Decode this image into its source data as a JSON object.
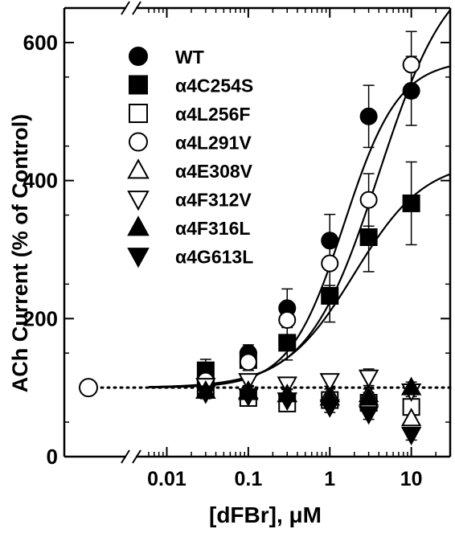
{
  "chart_data": {
    "type": "scatter",
    "title": "",
    "xlabel": "[dFBr], μM",
    "ylabel": "ACh Current (% of Control)",
    "x_scale": "log",
    "x_axis_break": true,
    "xlim": [
      0.003,
      30
    ],
    "ylim": [
      0,
      650
    ],
    "x_ticks": [
      0.01,
      0.1,
      1,
      10
    ],
    "x_tick_labels": [
      "0.01",
      "0.1",
      "1",
      "10"
    ],
    "y_ticks": [
      0,
      200,
      400,
      600
    ],
    "y_tick_labels": [
      "0",
      "200",
      "400",
      "600"
    ],
    "control_point": {
      "y": 100,
      "marker": "circle-open"
    },
    "reference_line": {
      "y": 100,
      "style": "dotted"
    },
    "legend_position": "top-left",
    "series": [
      {
        "name": "WT",
        "marker": "circle-filled",
        "x": [
          0.03,
          0.1,
          0.3,
          1,
          3,
          10
        ],
        "y": [
          110,
          150,
          215,
          313,
          493,
          530
        ],
        "err": [
          10,
          12,
          28,
          38,
          45,
          50
        ]
      },
      {
        "name": "α4C254S",
        "marker": "square-filled",
        "x": [
          0.03,
          0.1,
          0.3,
          1,
          3,
          10
        ],
        "y": [
          125,
          140,
          165,
          233,
          318,
          367
        ],
        "err": [
          16,
          15,
          25,
          38,
          50,
          60
        ]
      },
      {
        "name": "α4L256F",
        "marker": "square-open",
        "x": [
          0.03,
          0.1,
          0.3,
          1,
          3,
          10
        ],
        "y": [
          100,
          85,
          77,
          82,
          78,
          72
        ],
        "err": [
          8,
          8,
          8,
          8,
          8,
          10
        ]
      },
      {
        "name": "α4L291V",
        "marker": "circle-open",
        "x": [
          0.03,
          0.1,
          0.3,
          1,
          3,
          10
        ],
        "y": [
          110,
          137,
          198,
          280,
          372,
          568
        ],
        "err": [
          10,
          12,
          22,
          32,
          38,
          48
        ]
      },
      {
        "name": "α4E308V",
        "marker": "triangle-up-open",
        "x": [
          0.03,
          0.1,
          0.3,
          1,
          3,
          10
        ],
        "y": [
          95,
          93,
          90,
          90,
          90,
          55
        ],
        "err": [
          8,
          8,
          8,
          8,
          8,
          8
        ]
      },
      {
        "name": "α4F312V",
        "marker": "triangle-down-open",
        "x": [
          0.03,
          0.1,
          0.3,
          1,
          3,
          10
        ],
        "y": [
          103,
          110,
          105,
          110,
          115,
          95
        ],
        "err": [
          8,
          8,
          8,
          8,
          12,
          8
        ]
      },
      {
        "name": "α4F316L",
        "marker": "triangle-up-filled",
        "x": [
          0.03,
          0.1,
          0.3,
          1,
          3,
          10
        ],
        "y": [
          95,
          95,
          90,
          85,
          85,
          100
        ],
        "err": [
          8,
          8,
          8,
          8,
          8,
          8
        ]
      },
      {
        "name": "α4G613L",
        "marker": "triangle-down-filled",
        "x": [
          0.03,
          0.1,
          0.3,
          1,
          3,
          10
        ],
        "y": [
          92,
          88,
          82,
          72,
          62,
          32
        ],
        "err": [
          8,
          8,
          8,
          8,
          8,
          8
        ]
      }
    ],
    "fit_curves": [
      {
        "series": "WT",
        "bottom": 100,
        "top": 575,
        "ec50": 1.5,
        "hill": 1.3
      },
      {
        "series": "α4L291V",
        "bottom": 100,
        "top": 720,
        "ec50": 4.0,
        "hill": 1.0
      },
      {
        "series": "α4C254S",
        "bottom": 100,
        "top": 430,
        "ec50": 2.0,
        "hill": 1.0
      }
    ]
  }
}
